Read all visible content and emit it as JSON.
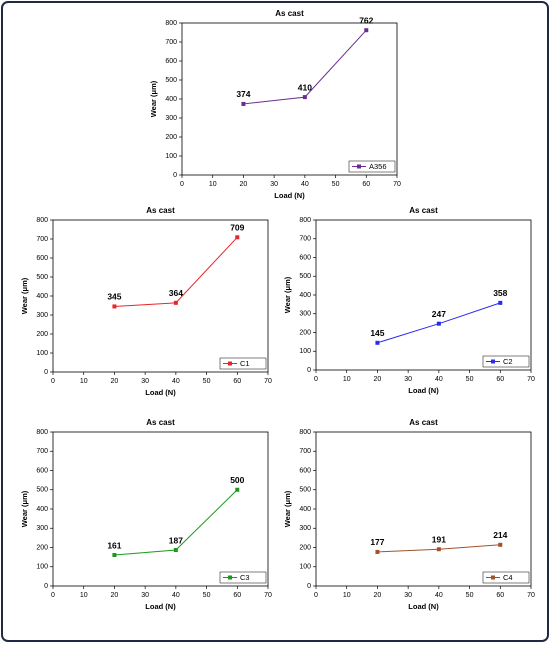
{
  "chart_data": [
    {
      "type": "line",
      "title": "As cast",
      "x_label": "Load (N)",
      "y_label": "Wear (μm)",
      "x": [
        20,
        40,
        60
      ],
      "xlim": [
        0,
        70
      ],
      "xticks": [
        0,
        10,
        20,
        30,
        40,
        50,
        60,
        70
      ],
      "ylim": [
        0,
        800
      ],
      "yticks": [
        0,
        100,
        200,
        300,
        400,
        500,
        600,
        700,
        800
      ],
      "legend": "lower right",
      "series": [
        {
          "name": "A356",
          "color": "#6a2c91",
          "values": [
            374,
            410,
            762
          ]
        }
      ]
    },
    {
      "type": "line",
      "title": "As cast",
      "x_label": "Load (N)",
      "y_label": "Wear (μm)",
      "x": [
        20,
        40,
        60
      ],
      "xlim": [
        0,
        70
      ],
      "xticks": [
        0,
        10,
        20,
        30,
        40,
        50,
        60,
        70
      ],
      "ylim": [
        0,
        800
      ],
      "yticks": [
        0,
        100,
        200,
        300,
        400,
        500,
        600,
        700,
        800
      ],
      "legend": "lower right",
      "series": [
        {
          "name": "C1",
          "color": "#e8262a",
          "values": [
            345,
            364,
            709
          ]
        }
      ]
    },
    {
      "type": "line",
      "title": "As cast",
      "x_label": "Load (N)",
      "y_label": "Wear (μm)",
      "x": [
        20,
        40,
        60
      ],
      "xlim": [
        0,
        70
      ],
      "xticks": [
        0,
        10,
        20,
        30,
        40,
        50,
        60,
        70
      ],
      "ylim": [
        0,
        800
      ],
      "yticks": [
        0,
        100,
        200,
        300,
        400,
        500,
        600,
        700,
        800
      ],
      "legend": "lower right",
      "series": [
        {
          "name": "C2",
          "color": "#2b2bf0",
          "values": [
            145,
            247,
            358
          ]
        }
      ]
    },
    {
      "type": "line",
      "title": "As cast",
      "x_label": "Load (N)",
      "y_label": "Wear (μm)",
      "x": [
        20,
        40,
        60
      ],
      "xlim": [
        0,
        70
      ],
      "xticks": [
        0,
        10,
        20,
        30,
        40,
        50,
        60,
        70
      ],
      "ylim": [
        0,
        800
      ],
      "yticks": [
        0,
        100,
        200,
        300,
        400,
        500,
        600,
        700,
        800
      ],
      "legend": "lower right",
      "series": [
        {
          "name": "C3",
          "color": "#1a9a1a",
          "values": [
            161,
            187,
            500
          ]
        }
      ]
    },
    {
      "type": "line",
      "title": "As cast",
      "x_label": "Load (N)",
      "y_label": "Wear (μm)",
      "x": [
        20,
        40,
        60
      ],
      "xlim": [
        0,
        70
      ],
      "xticks": [
        0,
        10,
        20,
        30,
        40,
        50,
        60,
        70
      ],
      "ylim": [
        0,
        800
      ],
      "yticks": [
        0,
        100,
        200,
        300,
        400,
        500,
        600,
        700,
        800
      ],
      "legend": "lower right",
      "series": [
        {
          "name": "C4",
          "color": "#a0522d",
          "values": [
            177,
            191,
            214
          ]
        }
      ]
    }
  ]
}
